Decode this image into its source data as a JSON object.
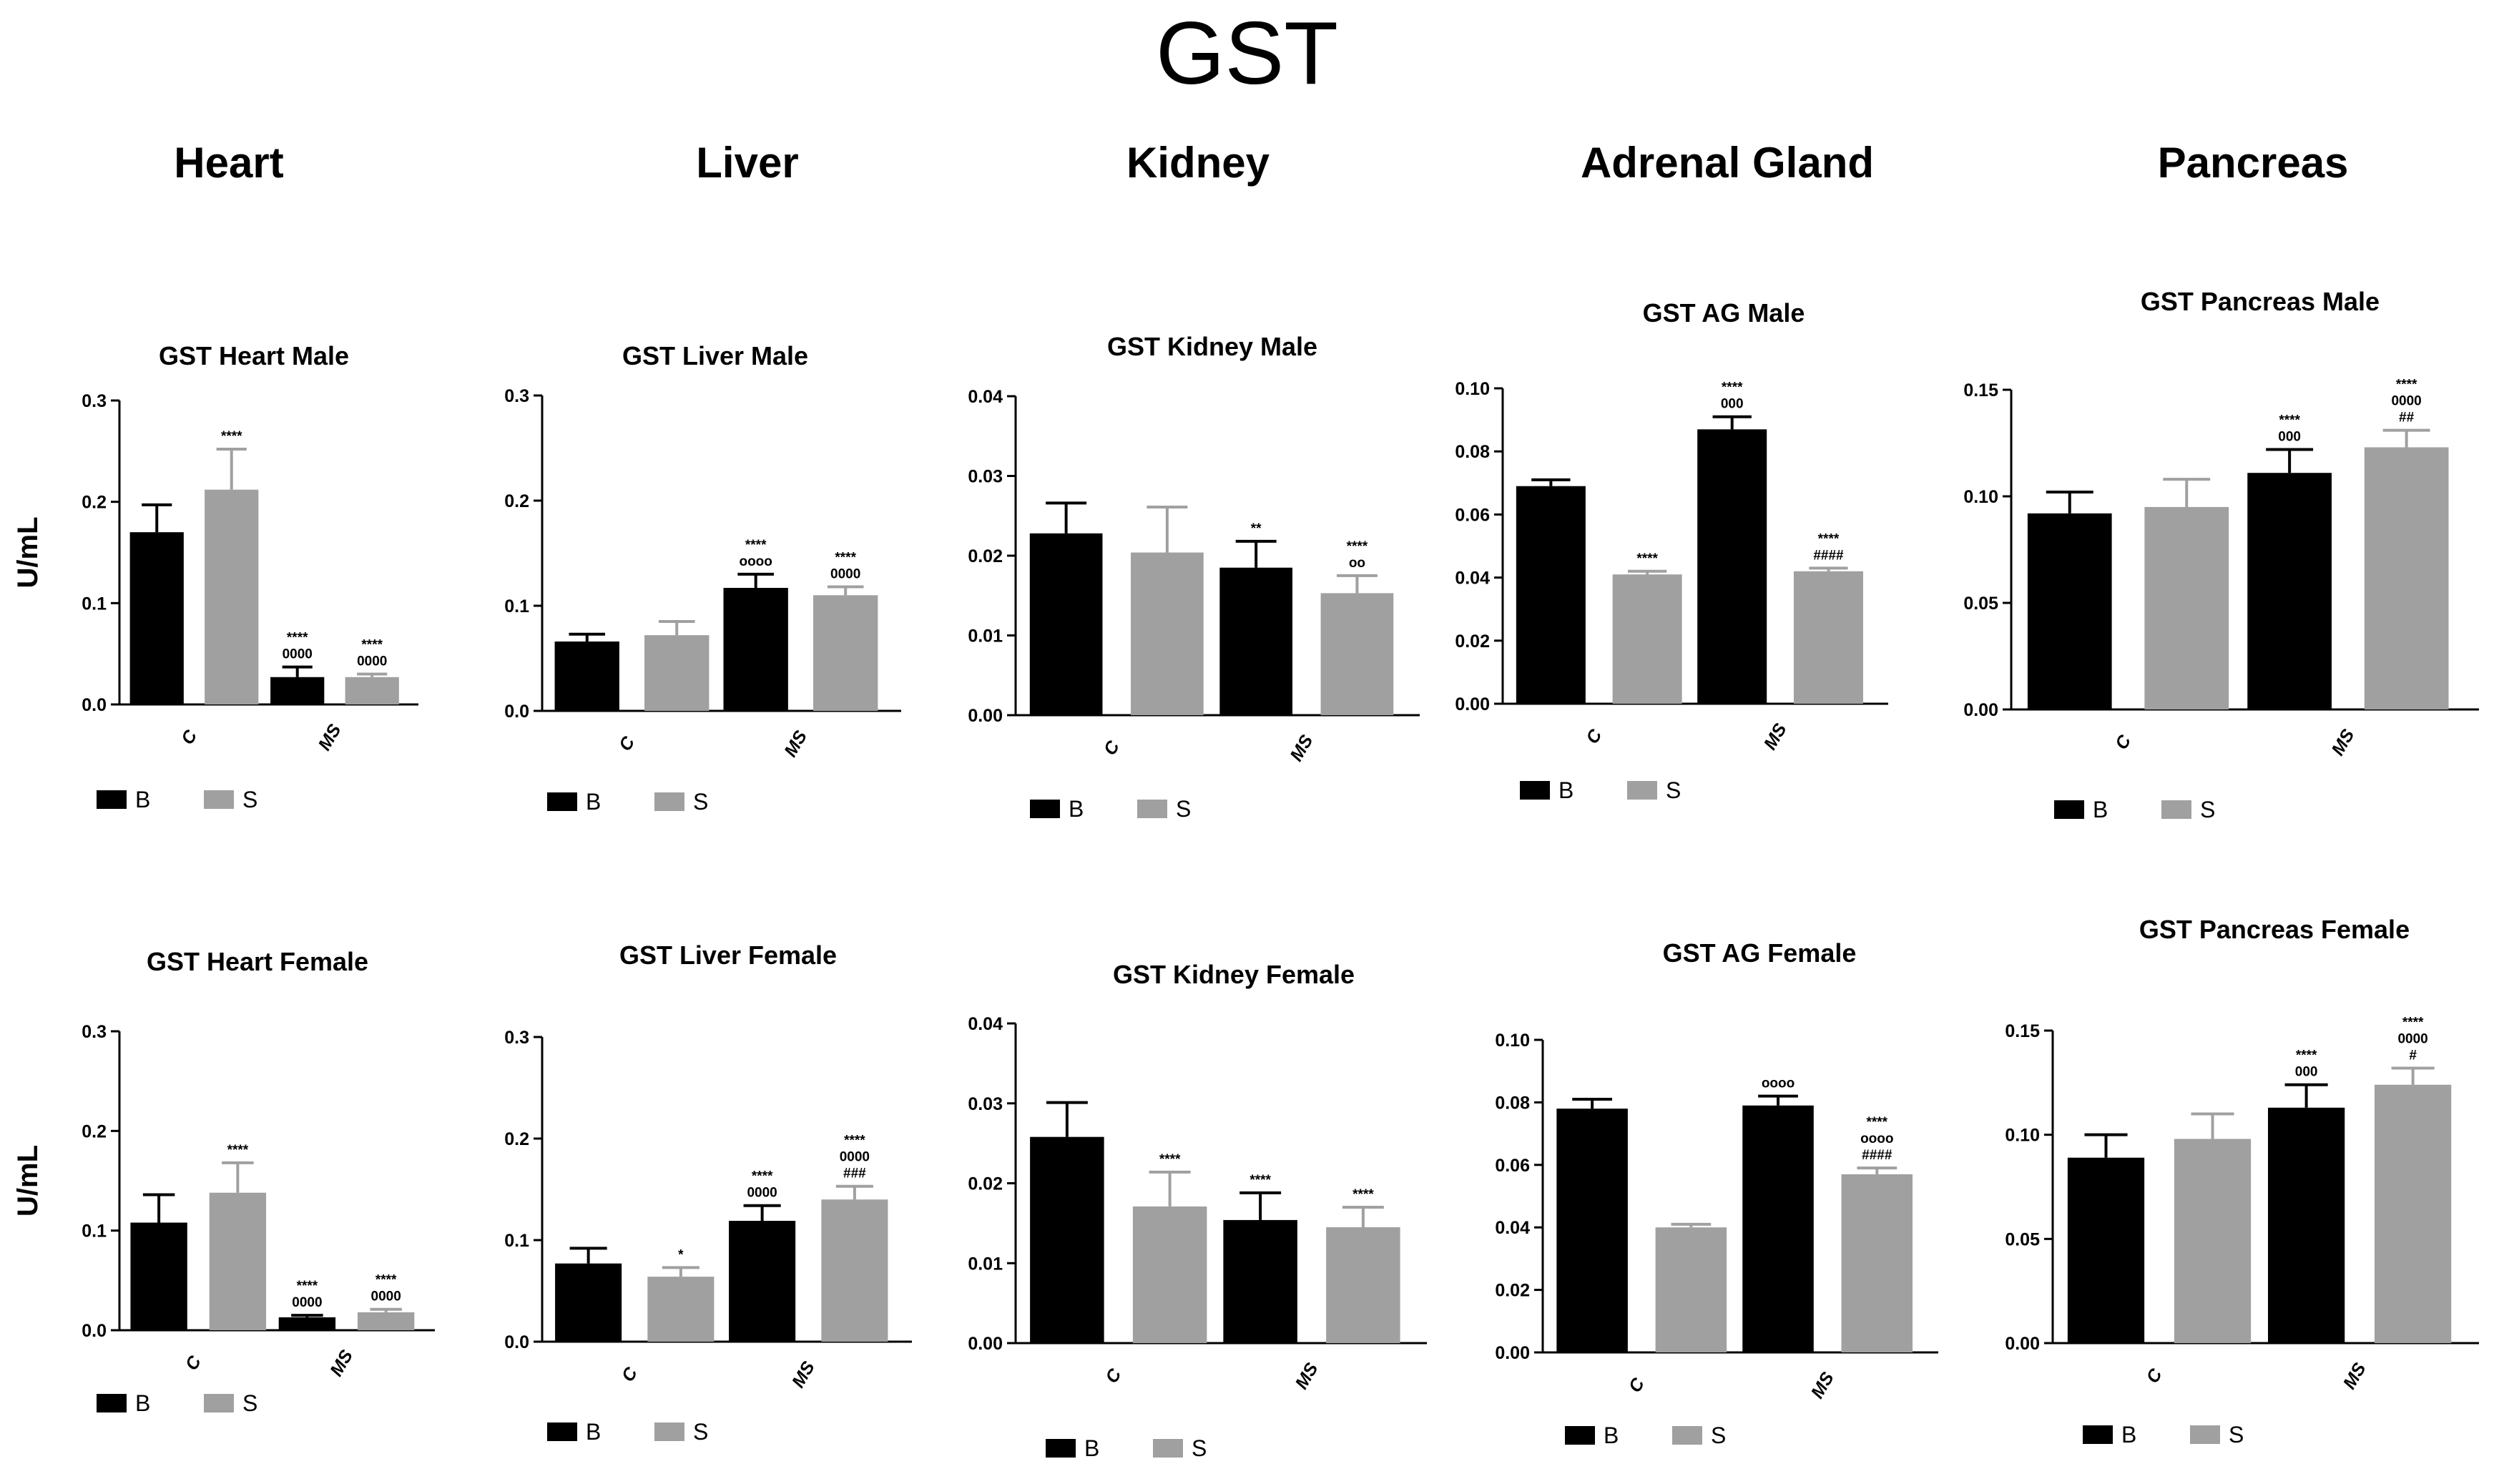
{
  "figure": {
    "title": "GST",
    "columns": [
      "Heart",
      "Liver",
      "Kidney",
      "Adrenal Gland",
      "Pancreas"
    ],
    "colors": {
      "B": "#000000",
      "S": "#a0a0a0",
      "axis": "#000000"
    }
  },
  "chart_data": [
    {
      "type": "bar",
      "title": "GST Heart Male",
      "ylabel": "U/mL",
      "ylim": [
        0,
        0.3
      ],
      "yticks": [
        "0.0",
        "0.1",
        "0.2",
        "0.3"
      ],
      "categories": [
        "C",
        "MS"
      ],
      "series": [
        {
          "name": "B",
          "values": [
            0.17,
            0.027
          ],
          "errors": [
            0.027,
            0.01
          ],
          "annotations": [
            "",
            "****\n0000"
          ]
        },
        {
          "name": "S",
          "values": [
            0.212,
            0.027
          ],
          "errors": [
            0.04,
            0.003
          ],
          "annotations": [
            "****",
            "****\n0000"
          ]
        }
      ]
    },
    {
      "type": "bar",
      "title": "GST Liver Male",
      "ylabel": "",
      "ylim": [
        0,
        0.3
      ],
      "yticks": [
        "0.0",
        "0.1",
        "0.2",
        "0.3"
      ],
      "categories": [
        "C",
        "MS"
      ],
      "series": [
        {
          "name": "B",
          "values": [
            0.066,
            0.117
          ],
          "errors": [
            0.007,
            0.013
          ],
          "annotations": [
            "",
            "****\noooo"
          ]
        },
        {
          "name": "S",
          "values": [
            0.072,
            0.11
          ],
          "errors": [
            0.013,
            0.008
          ],
          "annotations": [
            "",
            "****\n0000"
          ]
        }
      ]
    },
    {
      "type": "bar",
      "title": "GST Kidney Male",
      "ylabel": "",
      "ylim": [
        0,
        0.04
      ],
      "yticks": [
        "0.00",
        "0.01",
        "0.02",
        "0.03",
        "0.04"
      ],
      "categories": [
        "C",
        "MS"
      ],
      "series": [
        {
          "name": "B",
          "values": [
            0.0228,
            0.0185
          ],
          "errors": [
            0.0038,
            0.0033
          ],
          "annotations": [
            "",
            "**"
          ]
        },
        {
          "name": "S",
          "values": [
            0.0204,
            0.0153
          ],
          "errors": [
            0.0057,
            0.0022
          ],
          "annotations": [
            "",
            "****\noo"
          ]
        }
      ]
    },
    {
      "type": "bar",
      "title": "GST AG Male",
      "ylabel": "",
      "ylim": [
        0,
        0.1
      ],
      "yticks": [
        "0.00",
        "0.02",
        "0.04",
        "0.06",
        "0.08",
        "0.10"
      ],
      "categories": [
        "C",
        "MS"
      ],
      "series": [
        {
          "name": "B",
          "values": [
            0.069,
            0.087
          ],
          "errors": [
            0.002,
            0.004
          ],
          "annotations": [
            "",
            "****\n000"
          ]
        },
        {
          "name": "S",
          "values": [
            0.041,
            0.042
          ],
          "errors": [
            0.001,
            0.001
          ],
          "annotations": [
            "****",
            "****\n####"
          ]
        }
      ]
    },
    {
      "type": "bar",
      "title": "GST Pancreas Male",
      "ylabel": "",
      "ylim": [
        0,
        0.15
      ],
      "yticks": [
        "0.00",
        "0.05",
        "0.10",
        "0.15"
      ],
      "categories": [
        "C",
        "MS"
      ],
      "series": [
        {
          "name": "B",
          "values": [
            0.092,
            0.111
          ],
          "errors": [
            0.01,
            0.011
          ],
          "annotations": [
            "",
            "****\n000"
          ]
        },
        {
          "name": "S",
          "values": [
            0.095,
            0.123
          ],
          "errors": [
            0.013,
            0.008
          ],
          "annotations": [
            "",
            "****\n0000\n##"
          ]
        }
      ]
    },
    {
      "type": "bar",
      "title": "GST Heart Female",
      "ylabel": "U/mL",
      "ylim": [
        0,
        0.3
      ],
      "yticks": [
        "0.0",
        "0.1",
        "0.2",
        "0.3"
      ],
      "categories": [
        "C",
        "MS"
      ],
      "series": [
        {
          "name": "B",
          "values": [
            0.108,
            0.013
          ],
          "errors": [
            0.028,
            0.002
          ],
          "annotations": [
            "",
            "****\n0000"
          ]
        },
        {
          "name": "S",
          "values": [
            0.138,
            0.018
          ],
          "errors": [
            0.03,
            0.003
          ],
          "annotations": [
            "****",
            "****\n0000"
          ]
        }
      ]
    },
    {
      "type": "bar",
      "title": "GST Liver Female",
      "ylabel": "",
      "ylim": [
        0,
        0.3
      ],
      "yticks": [
        "0.0",
        "0.1",
        "0.2",
        "0.3"
      ],
      "categories": [
        "C",
        "MS"
      ],
      "series": [
        {
          "name": "B",
          "values": [
            0.077,
            0.119
          ],
          "errors": [
            0.015,
            0.015
          ],
          "annotations": [
            "",
            "****\n0000"
          ]
        },
        {
          "name": "S",
          "values": [
            0.064,
            0.14
          ],
          "errors": [
            0.009,
            0.013
          ],
          "annotations": [
            "*",
            "****\n0000\n###"
          ]
        }
      ]
    },
    {
      "type": "bar",
      "title": "GST Kidney Female",
      "ylabel": "",
      "ylim": [
        0,
        0.04
      ],
      "yticks": [
        "0.00",
        "0.01",
        "0.02",
        "0.03",
        "0.04"
      ],
      "categories": [
        "C",
        "MS"
      ],
      "series": [
        {
          "name": "B",
          "values": [
            0.0258,
            0.0154
          ],
          "errors": [
            0.0043,
            0.0034
          ],
          "annotations": [
            "",
            "****"
          ]
        },
        {
          "name": "S",
          "values": [
            0.0171,
            0.0145
          ],
          "errors": [
            0.0043,
            0.0025
          ],
          "annotations": [
            "****",
            "****"
          ]
        }
      ]
    },
    {
      "type": "bar",
      "title": "GST AG Female",
      "ylabel": "",
      "ylim": [
        0,
        0.1
      ],
      "yticks": [
        "0.00",
        "0.02",
        "0.04",
        "0.06",
        "0.08",
        "0.10"
      ],
      "categories": [
        "C",
        "MS"
      ],
      "series": [
        {
          "name": "B",
          "values": [
            0.078,
            0.079
          ],
          "errors": [
            0.003,
            0.003
          ],
          "annotations": [
            "",
            "oooo"
          ]
        },
        {
          "name": "S",
          "values": [
            0.04,
            0.057
          ],
          "errors": [
            0.001,
            0.002
          ],
          "annotations": [
            "",
            "****\noooo\n####"
          ]
        }
      ]
    },
    {
      "type": "bar",
      "title": "GST Pancreas Female",
      "ylabel": "",
      "ylim": [
        0,
        0.15
      ],
      "yticks": [
        "0.00",
        "0.05",
        "0.10",
        "0.15"
      ],
      "categories": [
        "C",
        "MS"
      ],
      "series": [
        {
          "name": "B",
          "values": [
            0.089,
            0.113
          ],
          "errors": [
            0.011,
            0.011
          ],
          "annotations": [
            "",
            "****\n000"
          ]
        },
        {
          "name": "S",
          "values": [
            0.098,
            0.124
          ],
          "errors": [
            0.012,
            0.008
          ],
          "annotations": [
            "",
            "****\n0000\n#"
          ]
        }
      ]
    }
  ]
}
